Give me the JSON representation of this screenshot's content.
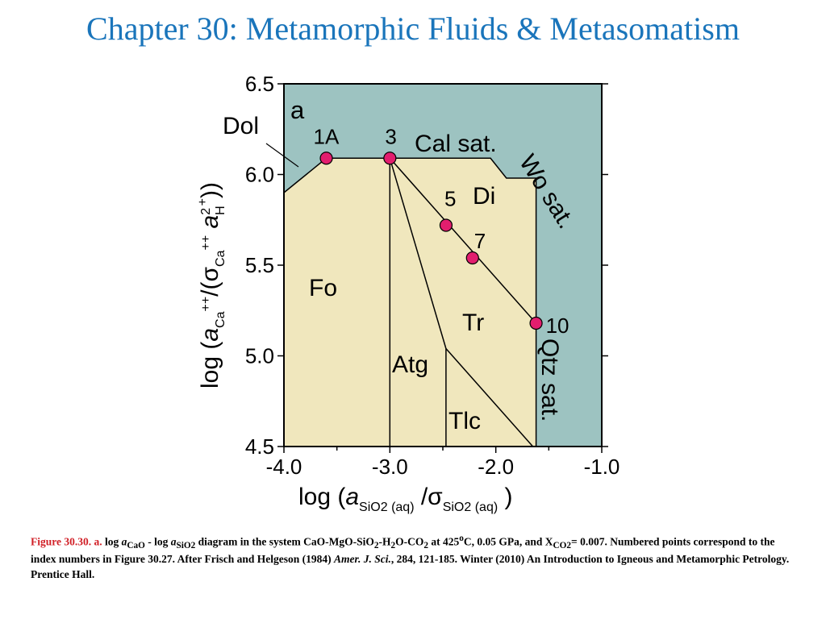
{
  "title": "Chapter 30: Metamorphic Fluids & Metasomatism",
  "chart_data": {
    "type": "phase-diagram",
    "panel_label": "a",
    "xlim": [
      -4.0,
      -1.0
    ],
    "ylim": [
      4.5,
      6.5
    ],
    "x_ticks": [
      "-4.0",
      "-3.0",
      "-2.0",
      "-1.0"
    ],
    "y_ticks": [
      "4.5",
      "5.0",
      "5.5",
      "6.0",
      "6.5"
    ],
    "colors": {
      "field": "#f0e7bd",
      "saturated": "#9dc3c1",
      "point": "#e21e6e",
      "title": "#1a75bb",
      "caption_label": "#d12027"
    },
    "fields": {
      "fo": "Fo",
      "di": "Di",
      "tr": "Tr",
      "atg": "Atg",
      "tlc": "Tlc",
      "cal_sat": "Cal sat.",
      "wo_sat": "Wo sat.",
      "qtz_sat": "Qtz sat.",
      "dol": "Dol"
    },
    "boundaries": {
      "saturation": [
        [
          -4.0,
          5.9
        ],
        [
          -3.6,
          6.09
        ],
        [
          -3.0,
          6.09
        ],
        [
          -2.05,
          6.09
        ],
        [
          -1.9,
          5.98
        ],
        [
          -1.62,
          5.98
        ],
        [
          -1.62,
          4.5
        ]
      ],
      "fo_atg": [
        [
          -3.0,
          6.09
        ],
        [
          -3.0,
          4.5
        ]
      ],
      "atg_tr": [
        [
          -3.0,
          6.09
        ],
        [
          -2.47,
          5.04
        ],
        [
          -2.47,
          4.5
        ]
      ],
      "tr_tlc": [
        [
          -2.47,
          5.04
        ],
        [
          -1.65,
          4.5
        ]
      ],
      "di_tr": [
        [
          -3.0,
          6.09
        ],
        [
          -1.62,
          5.18
        ]
      ]
    },
    "points": [
      {
        "label": "1A",
        "x": -3.6,
        "y": 6.09
      },
      {
        "label": "3",
        "x": -3.0,
        "y": 6.09
      },
      {
        "label": "5",
        "x": -2.47,
        "y": 5.72
      },
      {
        "label": "7",
        "x": -2.22,
        "y": 5.54
      },
      {
        "label": "10",
        "x": -1.62,
        "y": 5.18
      }
    ],
    "xlabel": {
      "pre": "log (",
      "a": "a",
      "sub1": "SiO",
      "sub1b": "2 (aq)",
      "mid": " /σ",
      "sub2": "SiO",
      "sub2b": "2 (aq)",
      "post": " )"
    },
    "ylabel": {
      "pre": "log (",
      "a": "a",
      "sub1": "Ca",
      "sup1": "++",
      "mid": "/(σ",
      "sub2": "Ca",
      "sup2": "++",
      "a2": " a",
      "sup3": "2",
      "sub3": "H",
      "sup4": "+",
      "post": "))"
    }
  },
  "caption": {
    "label": "Figure 30.30. a.",
    "t1": " log ",
    "a1": "a",
    "s1": "CaO",
    "t2": " - log ",
    "a2": "a",
    "s2": "SiO2",
    "t3": " diagram in the system CaO-MgO-SiO",
    "s3": "2",
    "t4": "-H",
    "s4": "2",
    "t5": "O-CO",
    "s5": "2",
    "t6": " at 425",
    "sup1": "o",
    "t7": "C, 0.05 GPa, and X",
    "s6": "CO2",
    "t8": "= 0.007. Numbered points correspond to the index numbers in Figure 30.27. After Frisch and Helgeson (1984) ",
    "journal": "Amer. J. Sci.",
    "t9": ", 284, 121-185. Winter (2010) An Introduction to Igneous and Metamorphic Petrology. Prentice Hall."
  }
}
